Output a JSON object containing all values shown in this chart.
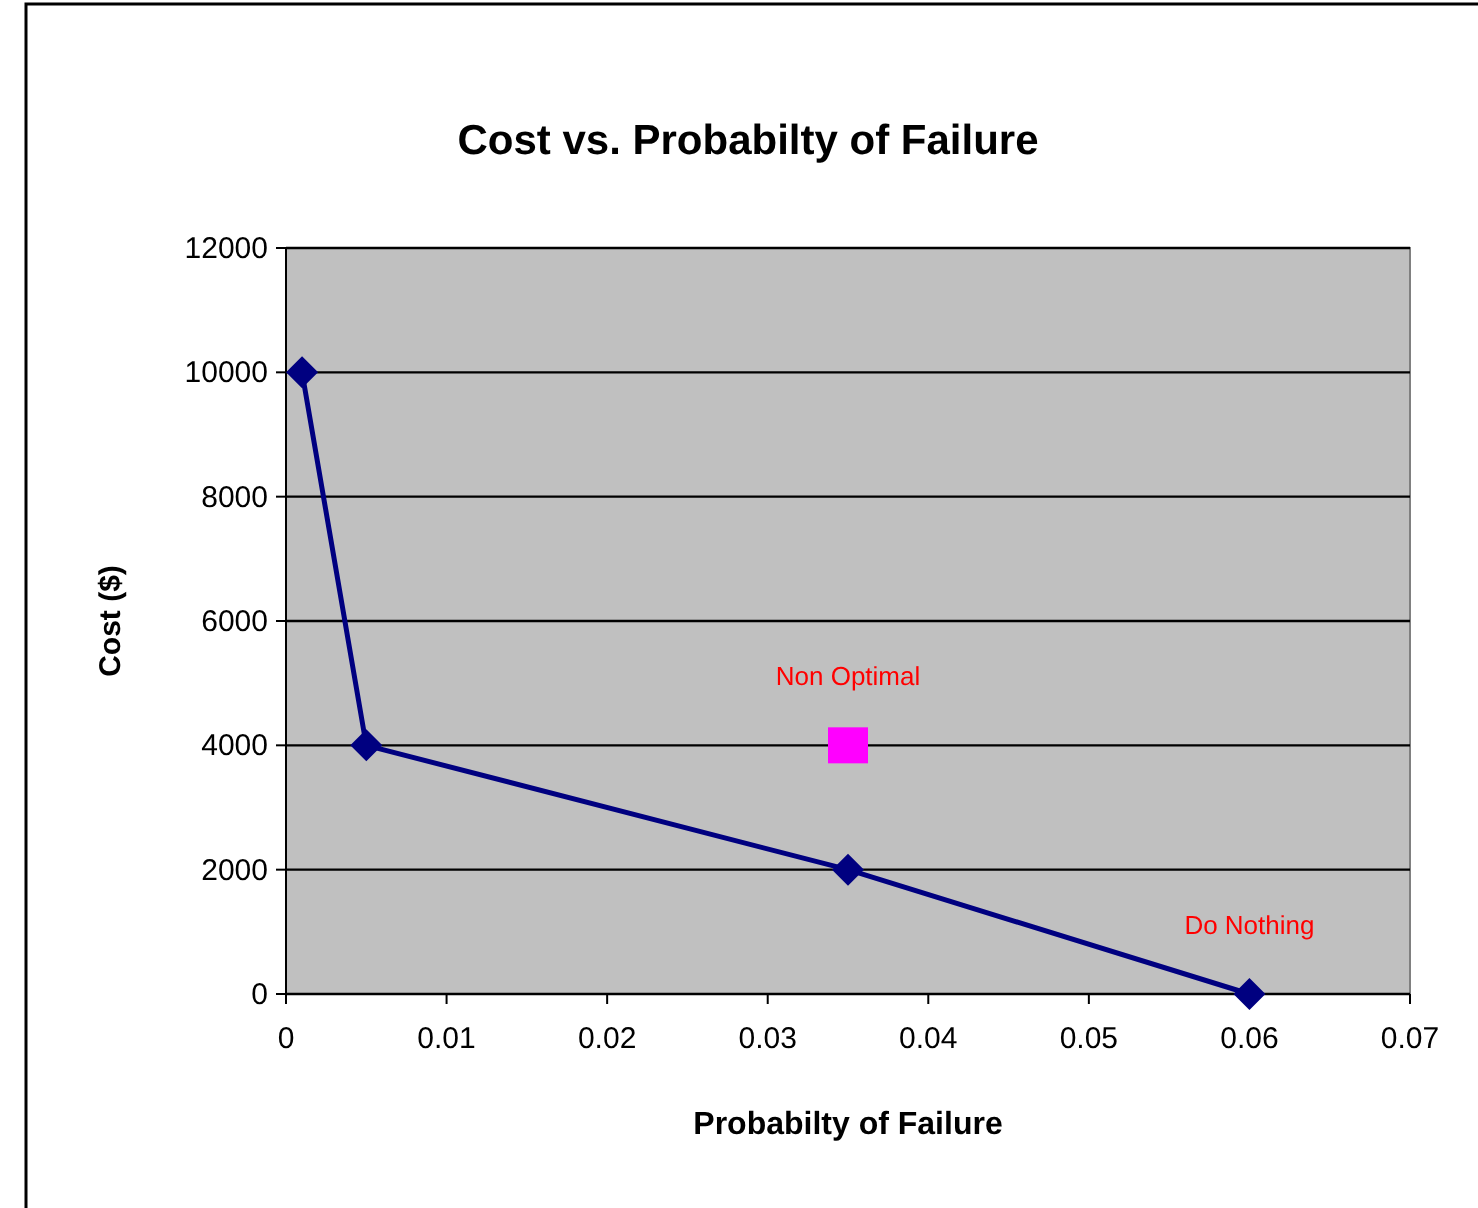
{
  "chart_data": {
    "type": "line",
    "title": "Cost vs. Probabilty of Failure",
    "xlabel": "Probabilty of Failure",
    "ylabel": "Cost ($)",
    "xlim": [
      0,
      0.07
    ],
    "xticks": [
      0,
      0.01,
      0.02,
      0.03,
      0.04,
      0.05,
      0.06,
      0.07
    ],
    "ylim": [
      0,
      12000
    ],
    "yticks": [
      0,
      2000,
      4000,
      6000,
      8000,
      10000,
      12000
    ],
    "grid": "y",
    "series": [
      {
        "type": "line",
        "color": "#000080",
        "x": [
          0.001,
          0.005,
          0.035,
          0.06
        ],
        "values": [
          10000,
          4000,
          2000,
          0
        ],
        "marker": "diamond"
      },
      {
        "type": "scatter",
        "color": "#ff00ff",
        "x": [
          0.035
        ],
        "values": [
          4000
        ],
        "marker": "square"
      }
    ],
    "annotations": [
      {
        "text": "Non Optimal",
        "x": 0.035,
        "y": 4000
      },
      {
        "text": "Do Nothing",
        "x": 0.06,
        "y": 0
      }
    ]
  }
}
